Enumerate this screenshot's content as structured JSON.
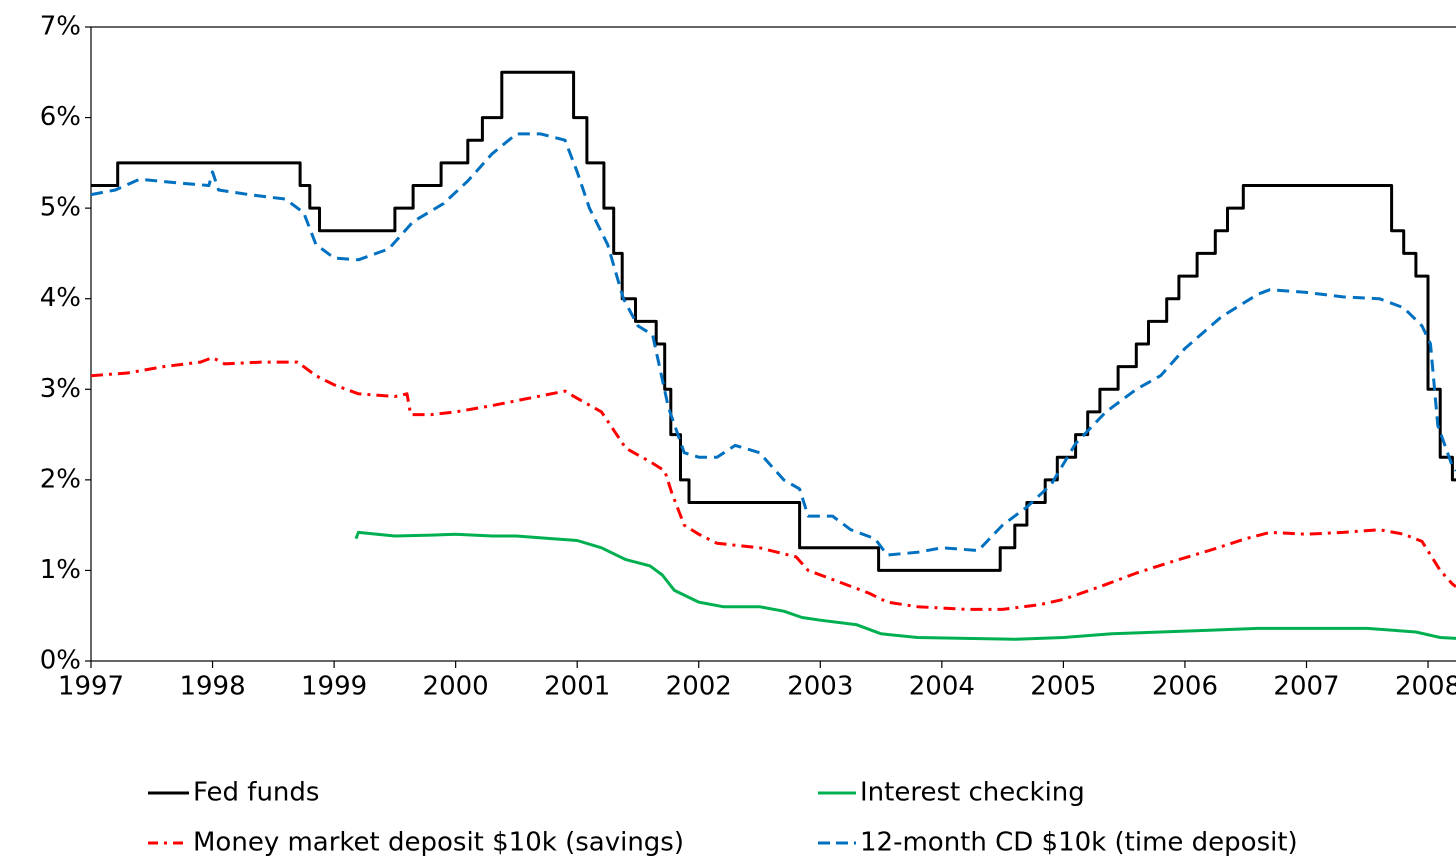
{
  "chart_data": {
    "type": "line",
    "xlim": [
      1997,
      2008.23
    ],
    "xticks": [
      1997,
      1998,
      1999,
      2000,
      2001,
      2002,
      2003,
      2004,
      2005,
      2006,
      2007,
      2008
    ],
    "ylim": [
      0,
      7
    ],
    "yticks": [
      {
        "value": 0,
        "label": "0%"
      },
      {
        "value": 1,
        "label": "1%"
      },
      {
        "value": 2,
        "label": "2%"
      },
      {
        "value": 3,
        "label": "3%"
      },
      {
        "value": 4,
        "label": "4%"
      },
      {
        "value": 5,
        "label": "5%"
      },
      {
        "value": 6,
        "label": "6%"
      },
      {
        "value": 7,
        "label": "7%"
      }
    ],
    "grid": false,
    "legend": "bottom",
    "series": [
      {
        "name": "Fed funds",
        "color": "#000000",
        "dash": "solid",
        "x": [
          1997,
          1997.22,
          1997.22,
          1998.72,
          1998.72,
          1998.8,
          1998.8,
          1998.88,
          1998.88,
          1999.5,
          1999.5,
          1999.65,
          1999.65,
          1999.88,
          1999.88,
          2000.1,
          2000.1,
          2000.22,
          2000.22,
          2000.38,
          2000.38,
          2000.97,
          2000.97,
          2001.08,
          2001.08,
          2001.22,
          2001.22,
          2001.3,
          2001.3,
          2001.37,
          2001.37,
          2001.48,
          2001.48,
          2001.65,
          2001.65,
          2001.72,
          2001.72,
          2001.77,
          2001.77,
          2001.85,
          2001.85,
          2001.92,
          2001.92,
          2002.83,
          2002.83,
          2003.48,
          2003.48,
          2004.48,
          2004.48,
          2004.6,
          2004.6,
          2004.7,
          2004.7,
          2004.85,
          2004.85,
          2004.95,
          2004.95,
          2005.1,
          2005.1,
          2005.2,
          2005.2,
          2005.3,
          2005.3,
          2005.45,
          2005.45,
          2005.6,
          2005.6,
          2005.7,
          2005.7,
          2005.85,
          2005.85,
          2005.95,
          2005.95,
          2006.1,
          2006.1,
          2006.25,
          2006.25,
          2006.35,
          2006.35,
          2006.48,
          2006.48,
          2007.7,
          2007.7,
          2007.8,
          2007.8,
          2007.9,
          2007.9,
          2008.0,
          2008.0,
          2008.1,
          2008.1,
          2008.2,
          2008.2,
          2008.23
        ],
        "values": [
          5.25,
          5.25,
          5.5,
          5.5,
          5.25,
          5.25,
          5.0,
          5.0,
          4.75,
          4.75,
          5.0,
          5.0,
          5.25,
          5.25,
          5.5,
          5.5,
          5.75,
          5.75,
          6.0,
          6.0,
          6.5,
          6.5,
          6.0,
          6.0,
          5.5,
          5.5,
          5.0,
          5.0,
          4.5,
          4.5,
          4.0,
          4.0,
          3.75,
          3.75,
          3.5,
          3.5,
          3.0,
          3.0,
          2.5,
          2.5,
          2.0,
          2.0,
          1.75,
          1.75,
          1.25,
          1.25,
          1.0,
          1.0,
          1.25,
          1.25,
          1.5,
          1.5,
          1.75,
          1.75,
          2.0,
          2.0,
          2.25,
          2.25,
          2.5,
          2.5,
          2.75,
          2.75,
          3.0,
          3.0,
          3.25,
          3.25,
          3.5,
          3.5,
          3.75,
          3.75,
          4.0,
          4.0,
          4.25,
          4.25,
          4.5,
          4.5,
          4.75,
          4.75,
          5.0,
          5.0,
          5.25,
          5.25,
          4.75,
          4.75,
          4.5,
          4.5,
          4.25,
          4.25,
          3.0,
          3.0,
          2.25,
          2.25,
          2.0,
          2.0
        ]
      },
      {
        "name": "Interest checking",
        "color": "#00b050",
        "dash": "solid",
        "x": [
          1999.18,
          1999.2,
          1999.5,
          1999.8,
          2000.0,
          2000.3,
          2000.5,
          2000.8,
          2001.0,
          2001.2,
          2001.4,
          2001.6,
          2001.7,
          2001.8,
          2002.0,
          2002.2,
          2002.5,
          2002.7,
          2002.85,
          2003.0,
          2003.3,
          2003.5,
          2003.8,
          2004.2,
          2004.6,
          2005.0,
          2005.4,
          2005.8,
          2006.2,
          2006.6,
          2007.0,
          2007.5,
          2007.9,
          2008.1,
          2008.23
        ],
        "values": [
          1.35,
          1.42,
          1.38,
          1.39,
          1.4,
          1.38,
          1.38,
          1.35,
          1.33,
          1.25,
          1.12,
          1.05,
          0.95,
          0.78,
          0.65,
          0.6,
          0.6,
          0.55,
          0.48,
          0.45,
          0.4,
          0.3,
          0.26,
          0.25,
          0.24,
          0.26,
          0.3,
          0.32,
          0.34,
          0.36,
          0.36,
          0.36,
          0.32,
          0.26,
          0.25
        ]
      },
      {
        "name": "Money market deposit $10k (savings)",
        "color": "#ff0000",
        "dash": "dashdot",
        "x": [
          1997.0,
          1997.3,
          1997.6,
          1997.9,
          1998.0,
          1998.1,
          1998.4,
          1998.7,
          1998.85,
          1999.0,
          1999.2,
          1999.5,
          1999.6,
          1999.63,
          1999.8,
          2000.0,
          2000.3,
          2000.6,
          2000.9,
          2001.0,
          2001.2,
          2001.4,
          2001.6,
          2001.72,
          2001.78,
          2001.88,
          2002.0,
          2002.15,
          2002.5,
          2002.8,
          2002.9,
          2003.1,
          2003.4,
          2003.55,
          2003.8,
          2004.2,
          2004.5,
          2004.8,
          2005.0,
          2005.3,
          2005.6,
          2005.9,
          2006.2,
          2006.5,
          2006.7,
          2007.0,
          2007.3,
          2007.6,
          2007.8,
          2007.95,
          2008.1,
          2008.2,
          2008.23
        ],
        "values": [
          3.15,
          3.18,
          3.25,
          3.3,
          3.35,
          3.28,
          3.3,
          3.3,
          3.15,
          3.05,
          2.95,
          2.92,
          2.95,
          2.72,
          2.72,
          2.75,
          2.82,
          2.9,
          2.98,
          2.9,
          2.75,
          2.35,
          2.2,
          2.1,
          1.85,
          1.5,
          1.4,
          1.3,
          1.25,
          1.15,
          1.0,
          0.9,
          0.75,
          0.65,
          0.6,
          0.57,
          0.57,
          0.62,
          0.68,
          0.82,
          0.97,
          1.1,
          1.22,
          1.35,
          1.42,
          1.4,
          1.42,
          1.45,
          1.4,
          1.32,
          1.0,
          0.85,
          0.82
        ]
      },
      {
        "name": "12-month CD $10k (time deposit)",
        "color": "#0070c0",
        "dash": "dashed",
        "x": [
          1997.0,
          1997.2,
          1997.4,
          1997.7,
          1997.97,
          1998.0,
          1998.05,
          1998.3,
          1998.6,
          1998.75,
          1998.85,
          1999.0,
          1999.2,
          1999.45,
          1999.65,
          1999.9,
          2000.1,
          2000.3,
          2000.5,
          2000.7,
          2000.9,
          2001.0,
          2001.1,
          2001.25,
          2001.38,
          2001.5,
          2001.62,
          2001.75,
          2001.88,
          2002.0,
          2002.15,
          2002.3,
          2002.5,
          2002.7,
          2002.83,
          2002.9,
          2003.1,
          2003.25,
          2003.45,
          2003.55,
          2003.8,
          2004.0,
          2004.3,
          2004.5,
          2004.7,
          2004.9,
          2005.1,
          2005.35,
          2005.6,
          2005.8,
          2006.0,
          2006.3,
          2006.6,
          2006.7,
          2007.0,
          2007.3,
          2007.6,
          2007.8,
          2007.95,
          2008.02,
          2008.08,
          2008.2,
          2008.23
        ],
        "values": [
          5.15,
          5.2,
          5.32,
          5.28,
          5.25,
          5.4,
          5.2,
          5.15,
          5.1,
          4.95,
          4.6,
          4.45,
          4.43,
          4.55,
          4.85,
          5.05,
          5.3,
          5.6,
          5.82,
          5.82,
          5.75,
          5.4,
          5.0,
          4.6,
          4.0,
          3.7,
          3.6,
          2.8,
          2.3,
          2.25,
          2.25,
          2.38,
          2.3,
          2.0,
          1.9,
          1.6,
          1.6,
          1.45,
          1.35,
          1.17,
          1.2,
          1.25,
          1.22,
          1.5,
          1.7,
          1.95,
          2.4,
          2.75,
          3.0,
          3.15,
          3.45,
          3.8,
          4.05,
          4.1,
          4.07,
          4.02,
          4.0,
          3.9,
          3.7,
          3.5,
          2.6,
          2.15,
          2.1
        ]
      }
    ]
  }
}
